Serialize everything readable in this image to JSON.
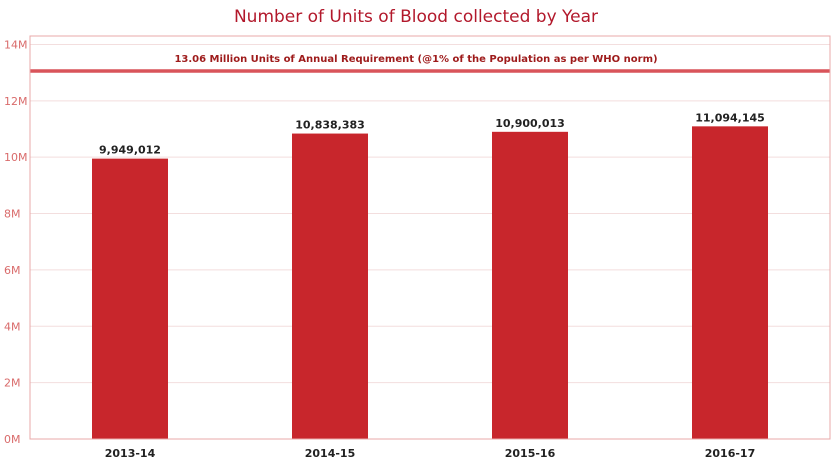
{
  "chart_data": {
    "type": "bar",
    "title": "Number of Units of Blood collected by Year",
    "categories": [
      "2013-14",
      "2014-15",
      "2015-16",
      "2016-17"
    ],
    "values": [
      9949012,
      10838383,
      10900013,
      11094145
    ],
    "value_labels": [
      "9,949,012",
      "10,838,383",
      "10,900,013",
      "11,094,145"
    ],
    "yticks": [
      0,
      2000000,
      4000000,
      6000000,
      8000000,
      10000000,
      12000000,
      14000000
    ],
    "ytick_labels": [
      "0M",
      "2M",
      "4M",
      "6M",
      "8M",
      "10M",
      "12M",
      "14M"
    ],
    "ylim": [
      0,
      14300000
    ],
    "grid": true,
    "reference_line": {
      "value": 13060000,
      "label": "13.06 Million Units of Annual Requirement (@1% of the Population as per WHO norm)"
    },
    "colors": {
      "bar": "#c8262c",
      "reference": "#d9545a",
      "title": "#b2182b",
      "axis_text": "#d96b6b",
      "grid": "#f3dede",
      "border": "#e8a8a8"
    }
  }
}
